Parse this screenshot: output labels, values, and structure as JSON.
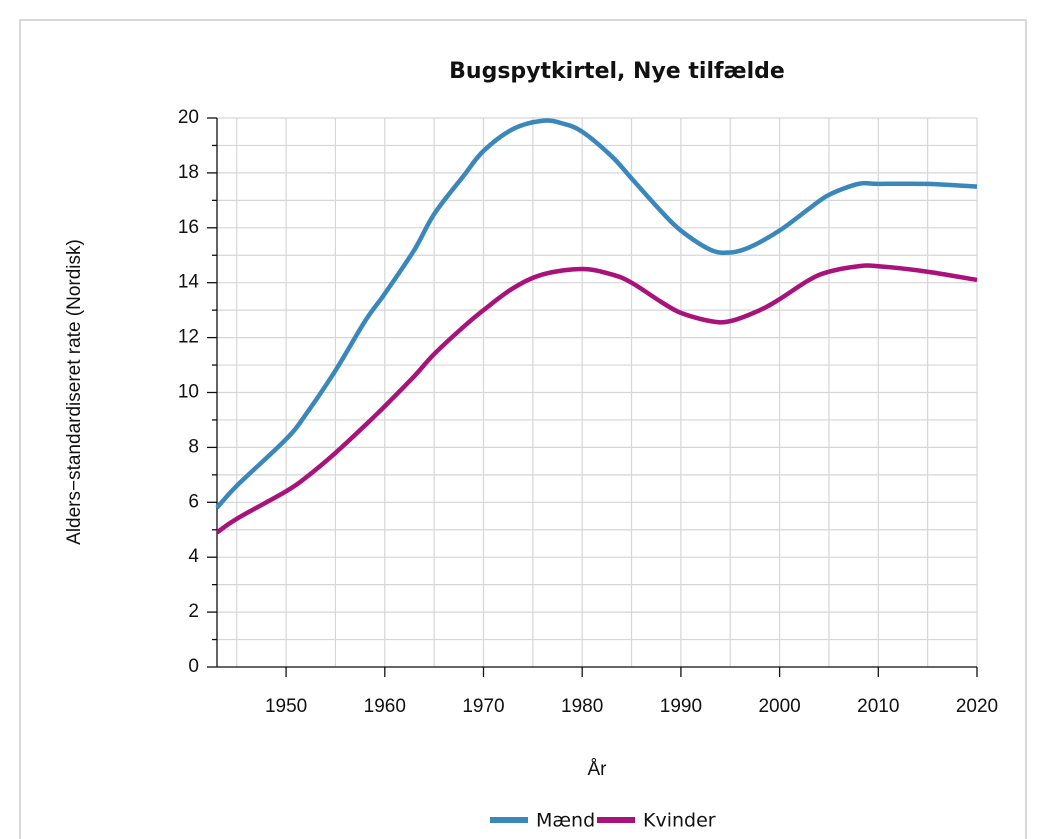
{
  "chart_data": {
    "type": "line",
    "title": "Bugspytkirtel, Nye tilfælde",
    "x_label": "År",
    "y_label": "Alders−standardiseret rate (Nordisk)",
    "xlim": [
      1943,
      2020
    ],
    "xticks": [
      1950,
      1960,
      1970,
      1980,
      1990,
      2000,
      2010,
      2020
    ],
    "x_minor_ticks": [
      1945,
      1955,
      1965,
      1975,
      1985,
      1995,
      2005,
      2015
    ],
    "ylim": [
      0,
      20
    ],
    "yticks": [
      0,
      2,
      4,
      6,
      8,
      10,
      12,
      14,
      16,
      18,
      20
    ],
    "y_minor_ticks": [
      1,
      3,
      5,
      7,
      9,
      11,
      13,
      15,
      17,
      19
    ],
    "grid": true,
    "legend": "bottom",
    "series": [
      {
        "name": "Mænd",
        "color": "#3a87bb",
        "x": [
          1943,
          1945,
          1950,
          1952,
          1955,
          1958,
          1960,
          1963,
          1965,
          1968,
          1970,
          1973,
          1976,
          1978,
          1980,
          1983,
          1985,
          1988,
          1990,
          1993,
          1995,
          1997,
          2000,
          2003,
          2005,
          2008,
          2010,
          2015,
          2020
        ],
        "values": [
          5.8,
          6.6,
          8.3,
          9.2,
          10.8,
          12.6,
          13.6,
          15.2,
          16.5,
          17.9,
          18.8,
          19.6,
          19.9,
          19.8,
          19.5,
          18.6,
          17.8,
          16.6,
          15.9,
          15.2,
          15.1,
          15.3,
          15.9,
          16.7,
          17.2,
          17.6,
          17.6,
          17.6,
          17.5
        ]
      },
      {
        "name": "Kvinder",
        "color": "#a8127a",
        "x": [
          1943,
          1945,
          1950,
          1952,
          1955,
          1958,
          1960,
          1963,
          1965,
          1968,
          1970,
          1973,
          1976,
          1980,
          1983,
          1985,
          1988,
          1990,
          1993,
          1995,
          1998,
          2000,
          2003,
          2005,
          2008,
          2010,
          2015,
          2020
        ],
        "values": [
          4.9,
          5.4,
          6.4,
          6.9,
          7.8,
          8.8,
          9.5,
          10.6,
          11.4,
          12.4,
          13.0,
          13.8,
          14.3,
          14.5,
          14.3,
          14.0,
          13.3,
          12.9,
          12.6,
          12.6,
          13.0,
          13.4,
          14.1,
          14.4,
          14.6,
          14.6,
          14.4,
          14.1
        ]
      }
    ]
  }
}
